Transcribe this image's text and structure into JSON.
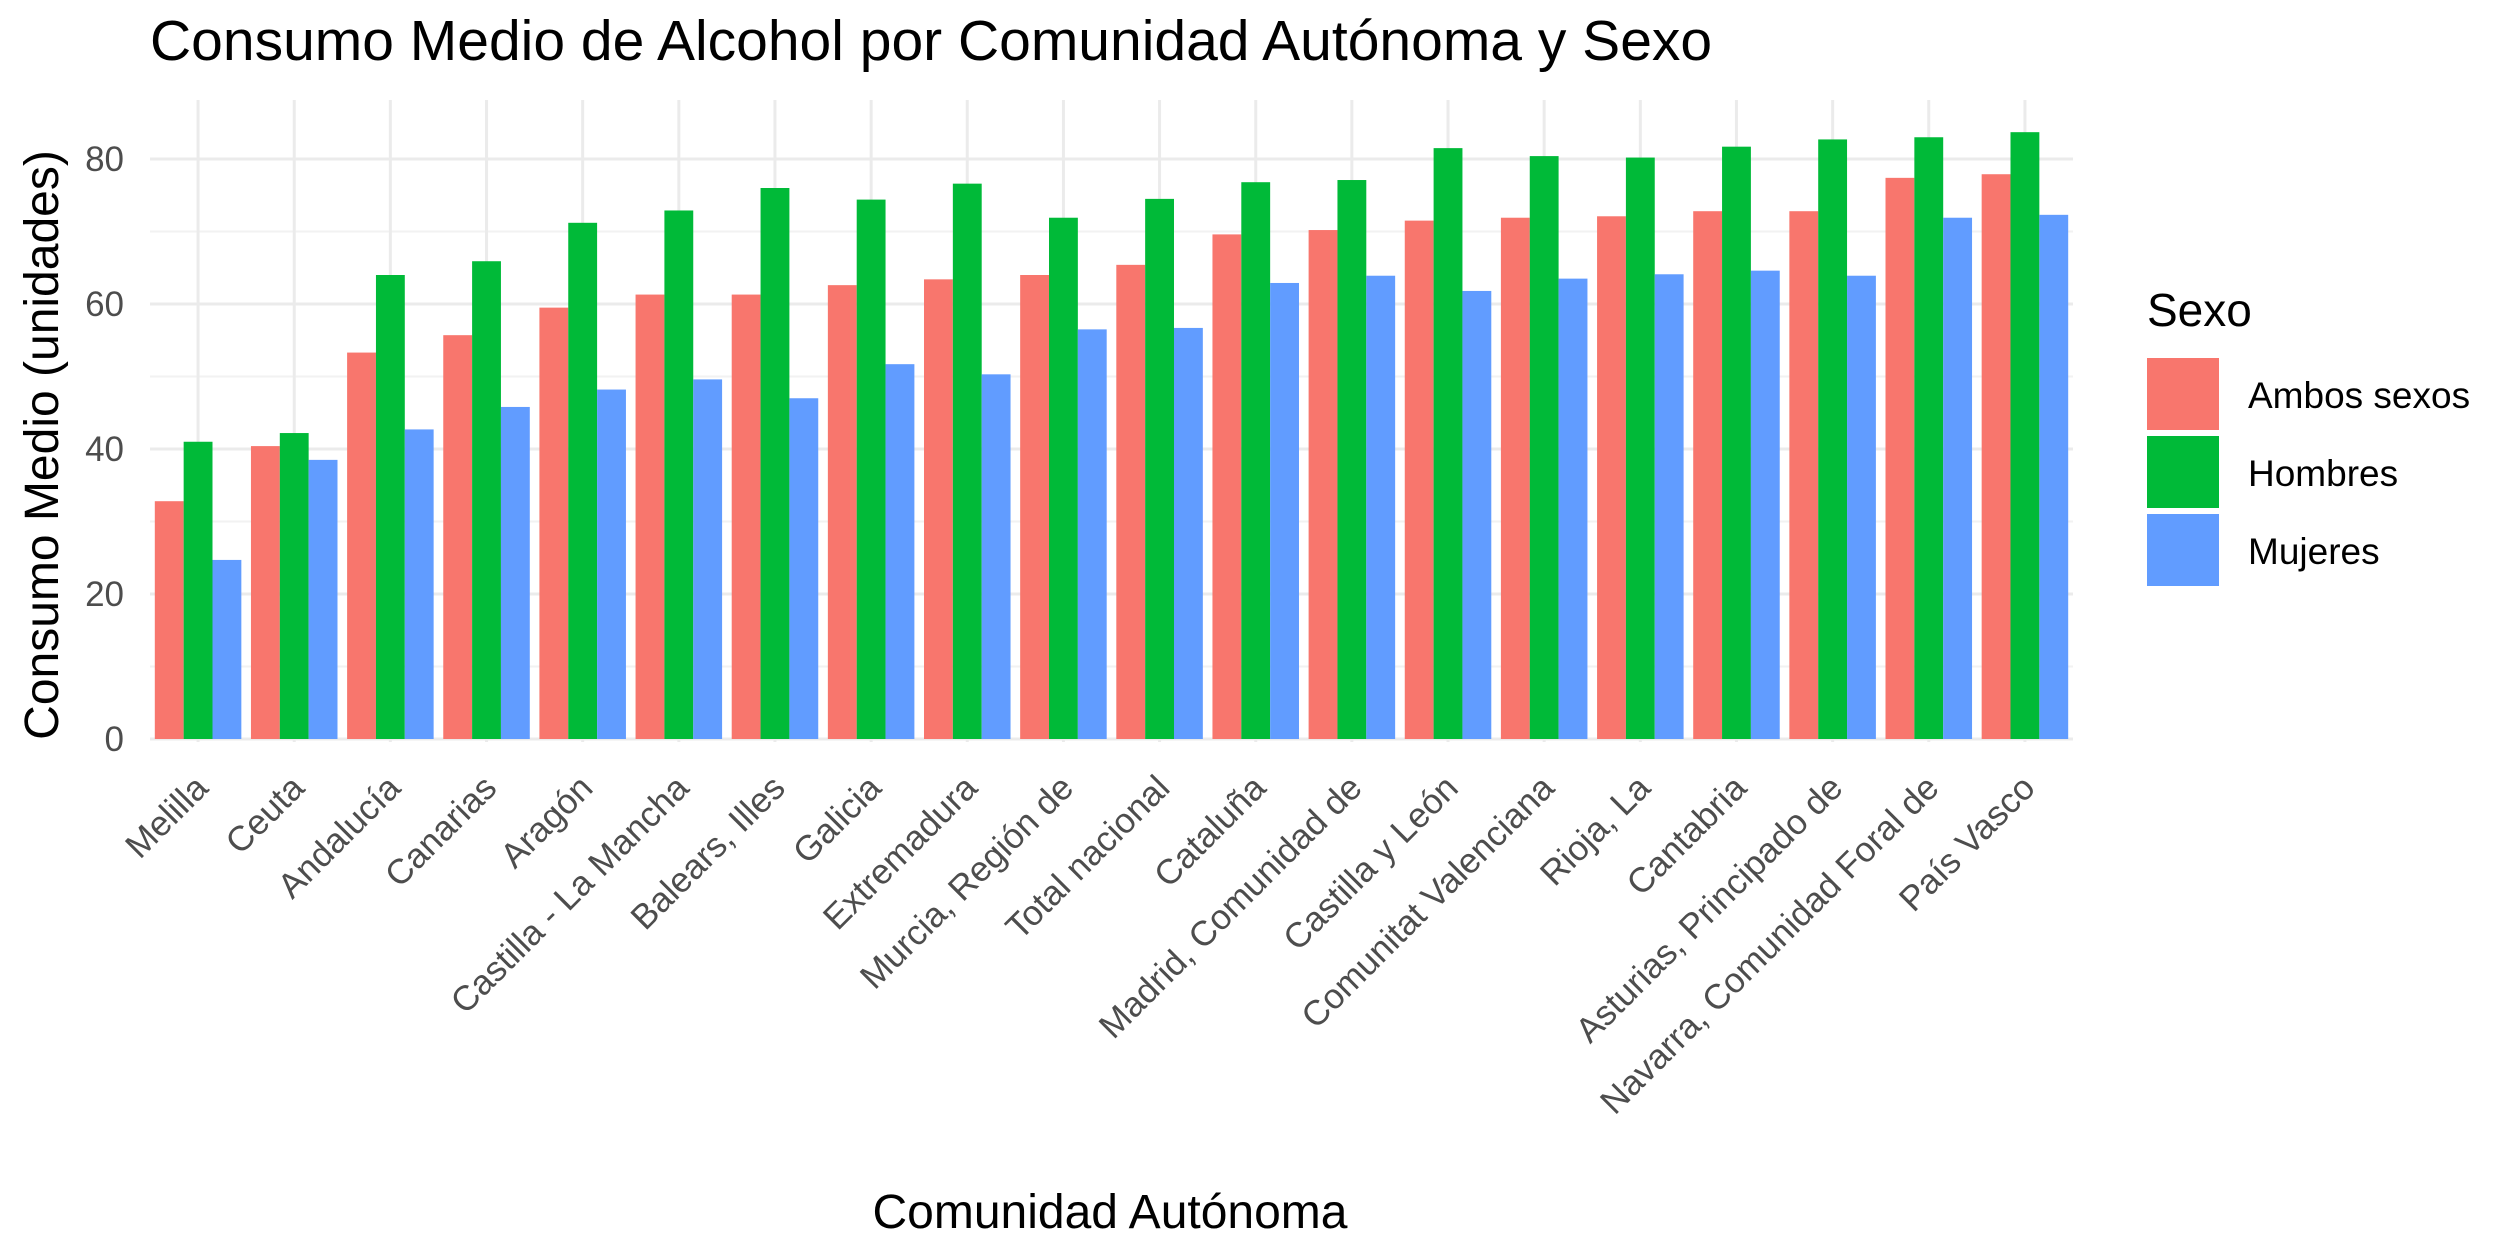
{
  "chart_data": {
    "type": "bar",
    "title": "Consumo Medio de Alcohol por Comunidad Autónoma y Sexo",
    "xlabel": "Comunidad Autónoma",
    "ylabel": "Consumo Medio (unidades)",
    "ylim": [
      0,
      88
    ],
    "yticks": [
      0,
      20,
      40,
      60,
      80
    ],
    "grid": true,
    "legend": {
      "title": "Sexo",
      "position": "right"
    },
    "categories": [
      "Melilla",
      "Ceuta",
      "Andalucía",
      "Canarias",
      "Aragón",
      "Castilla - La Mancha",
      "Balears, Illes",
      "Galicia",
      "Extremadura",
      "Murcia, Región de",
      "Total nacional",
      "Cataluña",
      "Madrid, Comunidad de",
      "Castilla y León",
      "Comunitat Valenciana",
      "Rioja, La",
      "Cantabria",
      "Asturias, Principado de",
      "Navarra, Comunidad Foral de",
      "País Vasco"
    ],
    "series": [
      {
        "name": "Ambos sexos",
        "color": "#F8766D",
        "values": [
          32.8,
          40.4,
          53.3,
          55.7,
          59.5,
          61.3,
          61.3,
          62.6,
          63.4,
          64.0,
          65.4,
          69.6,
          70.2,
          71.5,
          71.9,
          72.1,
          72.8,
          72.8,
          77.4,
          77.9
        ]
      },
      {
        "name": "Hombres",
        "color": "#00BA38",
        "values": [
          41.0,
          42.2,
          64.0,
          65.9,
          71.2,
          72.9,
          76.0,
          74.4,
          76.6,
          71.9,
          74.5,
          76.8,
          77.1,
          81.5,
          80.4,
          80.2,
          81.7,
          82.7,
          83.0,
          83.7
        ]
      },
      {
        "name": "Mujeres",
        "color": "#619CFF",
        "values": [
          24.7,
          38.5,
          42.7,
          45.8,
          48.2,
          49.6,
          47.0,
          51.7,
          50.3,
          56.5,
          56.7,
          62.9,
          63.9,
          61.8,
          63.5,
          64.1,
          64.6,
          63.9,
          71.9,
          72.3
        ]
      }
    ]
  }
}
